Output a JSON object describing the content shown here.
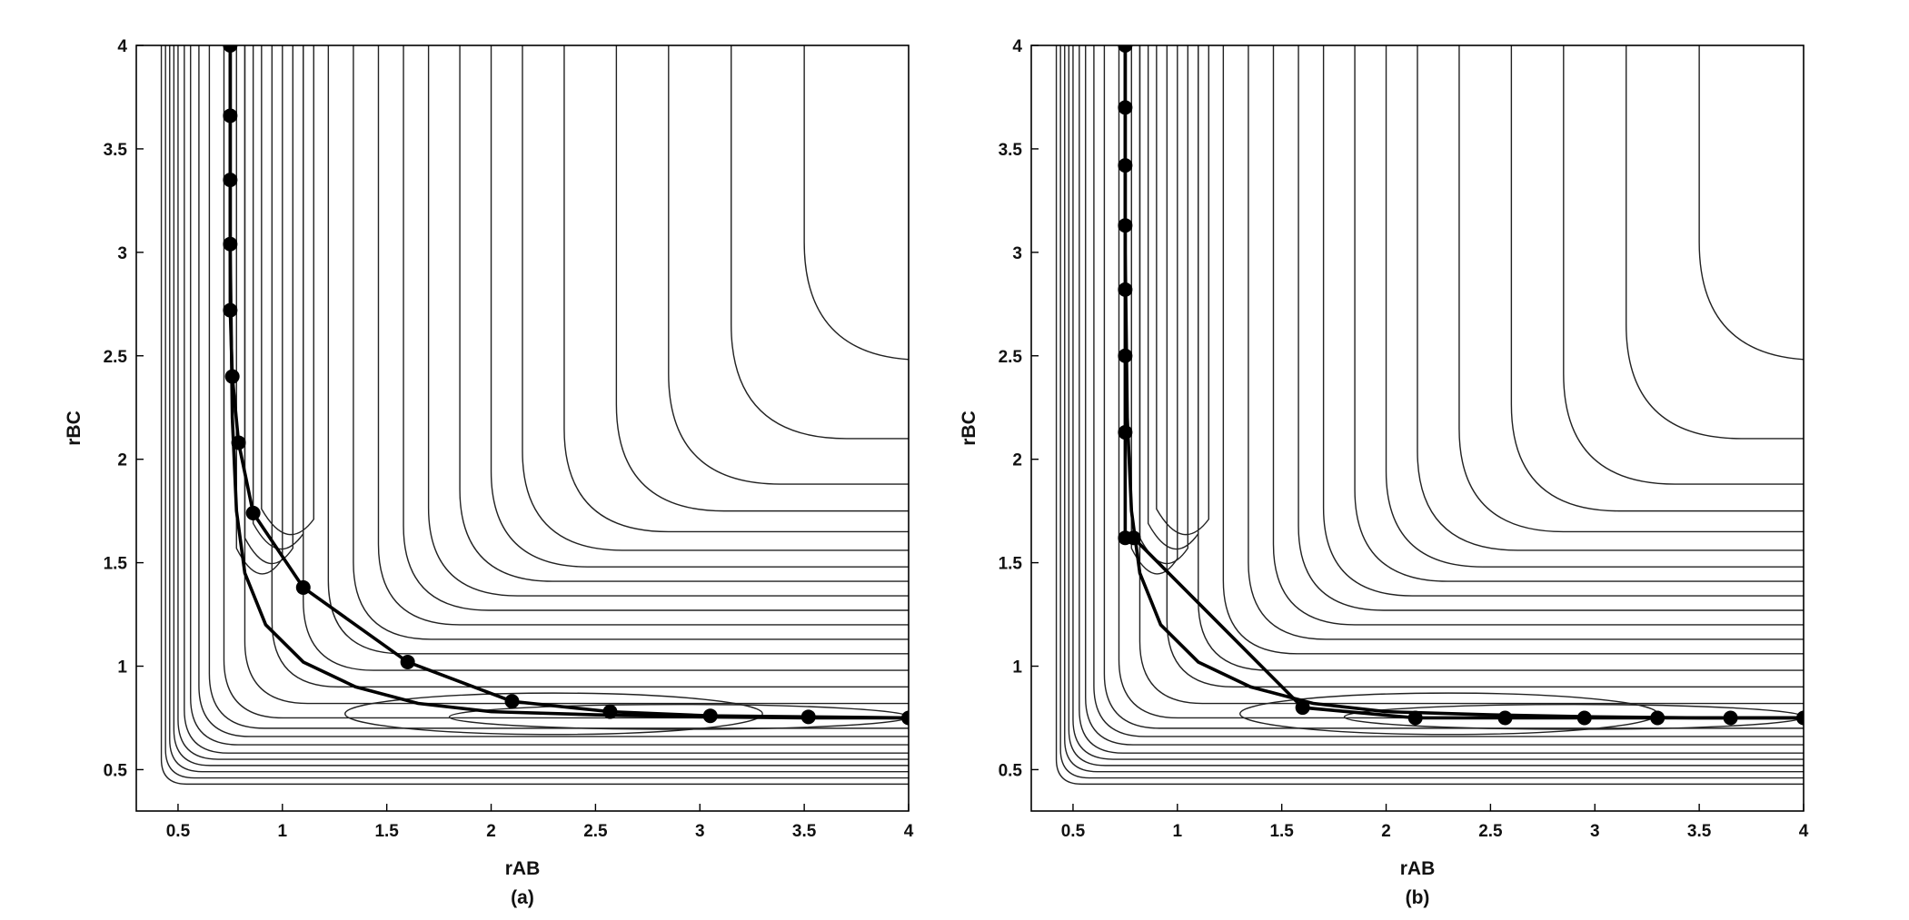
{
  "chart_data": [
    {
      "type": "contour",
      "panel_label": "(a)",
      "xlabel": "rAB",
      "ylabel": "rBC",
      "xlim": [
        0.3,
        4
      ],
      "ylim": [
        0.3,
        4
      ],
      "xticks": [
        0.5,
        1,
        1.5,
        2,
        2.5,
        3,
        3.5,
        4
      ],
      "xtick_labels": [
        "0.5",
        "1",
        "1.5",
        "2",
        "2.5",
        "3",
        "3.5",
        "4"
      ],
      "yticks": [
        0.5,
        1,
        1.5,
        2,
        2.5,
        3,
        3.5,
        4
      ],
      "ytick_labels": [
        "0.5",
        "1",
        "1.5",
        "2",
        "2.5",
        "3",
        "3.5",
        "4"
      ],
      "contour_corners": [
        [
          0.42,
          0.43
        ],
        [
          0.44,
          0.46
        ],
        [
          0.46,
          0.49
        ],
        [
          0.48,
          0.52
        ],
        [
          0.5,
          0.55
        ],
        [
          0.53,
          0.58
        ],
        [
          0.56,
          0.62
        ],
        [
          0.6,
          0.66
        ],
        [
          0.65,
          0.7
        ],
        [
          0.72,
          0.75
        ],
        [
          0.82,
          0.82
        ],
        [
          0.95,
          0.9
        ],
        [
          1.1,
          0.98
        ],
        [
          1.22,
          1.06
        ],
        [
          1.34,
          1.13
        ],
        [
          1.46,
          1.2
        ],
        [
          1.58,
          1.27
        ],
        [
          1.7,
          1.34
        ],
        [
          1.85,
          1.41
        ],
        [
          2.0,
          1.48
        ],
        [
          2.15,
          1.56
        ],
        [
          2.35,
          1.65
        ],
        [
          2.6,
          1.75
        ],
        [
          2.85,
          1.88
        ],
        [
          3.15,
          2.1
        ],
        [
          3.5,
          2.48
        ]
      ],
      "ridge_top_y": [
        1.57,
        1.62,
        1.69,
        1.76
      ],
      "valley_ellipses": [
        {
          "cx": 2.3,
          "cy": 0.77,
          "rx": 1.0,
          "ry": 0.1
        },
        {
          "cx": 2.9,
          "cy": 0.755,
          "rx": 1.1,
          "ry": 0.06
        }
      ],
      "series": [
        {
          "name": "",
          "role": "minimum-energy-path",
          "x": [
            0.75,
            0.75,
            0.76,
            0.78,
            0.82,
            0.92,
            1.1,
            1.35,
            1.65,
            2.0,
            2.5,
            3.0,
            3.5,
            4.0
          ],
          "y": [
            4.0,
            3.0,
            2.2,
            1.75,
            1.45,
            1.2,
            1.02,
            0.9,
            0.82,
            0.78,
            0.765,
            0.755,
            0.75,
            0.75
          ]
        },
        {
          "name": "",
          "role": "trajectory",
          "x": [
            0.75,
            0.75,
            0.75,
            0.75,
            0.75,
            0.76,
            0.79,
            0.86,
            1.1,
            1.6,
            2.1,
            2.57,
            3.05,
            3.52,
            4.0
          ],
          "y": [
            4.0,
            3.66,
            3.35,
            3.04,
            2.72,
            2.4,
            2.08,
            1.74,
            1.38,
            1.02,
            0.83,
            0.78,
            0.76,
            0.755,
            0.75
          ],
          "markers": true
        }
      ]
    },
    {
      "type": "contour",
      "panel_label": "(b)",
      "xlabel": "rAB",
      "ylabel": "rBC",
      "xlim": [
        0.3,
        4
      ],
      "ylim": [
        0.3,
        4
      ],
      "xticks": [
        0.5,
        1,
        1.5,
        2,
        2.5,
        3,
        3.5,
        4
      ],
      "xtick_labels": [
        "0.5",
        "1",
        "1.5",
        "2",
        "2.5",
        "3",
        "3.5",
        "4"
      ],
      "yticks": [
        0.5,
        1,
        1.5,
        2,
        2.5,
        3,
        3.5,
        4
      ],
      "ytick_labels": [
        "0.5",
        "1",
        "1.5",
        "2",
        "2.5",
        "3",
        "3.5",
        "4"
      ],
      "contour_corners": [
        [
          0.42,
          0.43
        ],
        [
          0.44,
          0.46
        ],
        [
          0.46,
          0.49
        ],
        [
          0.48,
          0.52
        ],
        [
          0.5,
          0.55
        ],
        [
          0.53,
          0.58
        ],
        [
          0.56,
          0.62
        ],
        [
          0.6,
          0.66
        ],
        [
          0.65,
          0.7
        ],
        [
          0.72,
          0.75
        ],
        [
          0.82,
          0.82
        ],
        [
          0.95,
          0.9
        ],
        [
          1.1,
          0.98
        ],
        [
          1.22,
          1.06
        ],
        [
          1.34,
          1.13
        ],
        [
          1.46,
          1.2
        ],
        [
          1.58,
          1.27
        ],
        [
          1.7,
          1.34
        ],
        [
          1.85,
          1.41
        ],
        [
          2.0,
          1.48
        ],
        [
          2.15,
          1.56
        ],
        [
          2.35,
          1.65
        ],
        [
          2.6,
          1.75
        ],
        [
          2.85,
          1.88
        ],
        [
          3.15,
          2.1
        ],
        [
          3.5,
          2.48
        ]
      ],
      "ridge_top_y": [
        1.57,
        1.62,
        1.69,
        1.76
      ],
      "valley_ellipses": [
        {
          "cx": 2.3,
          "cy": 0.77,
          "rx": 1.0,
          "ry": 0.1
        },
        {
          "cx": 2.9,
          "cy": 0.755,
          "rx": 1.1,
          "ry": 0.06
        }
      ],
      "series": [
        {
          "name": "",
          "role": "minimum-energy-path",
          "x": [
            0.75,
            0.75,
            0.76,
            0.78,
            0.82,
            0.92,
            1.1,
            1.35,
            1.65,
            2.0,
            2.5,
            3.0,
            3.5,
            4.0
          ],
          "y": [
            4.0,
            3.0,
            2.2,
            1.75,
            1.45,
            1.2,
            1.02,
            0.9,
            0.82,
            0.78,
            0.765,
            0.755,
            0.75,
            0.75
          ]
        },
        {
          "name": "",
          "role": "trajectory",
          "x": [
            0.75,
            0.75,
            0.75,
            0.75,
            0.75,
            0.75,
            0.75,
            0.75,
            0.79,
            1.6,
            2.14,
            2.57,
            2.95,
            3.3,
            3.65,
            4.0
          ],
          "y": [
            4.0,
            3.7,
            3.42,
            3.13,
            2.82,
            2.5,
            2.13,
            1.62,
            1.62,
            0.8,
            0.75,
            0.75,
            0.75,
            0.75,
            0.75,
            0.75
          ],
          "markers": true
        }
      ]
    }
  ]
}
